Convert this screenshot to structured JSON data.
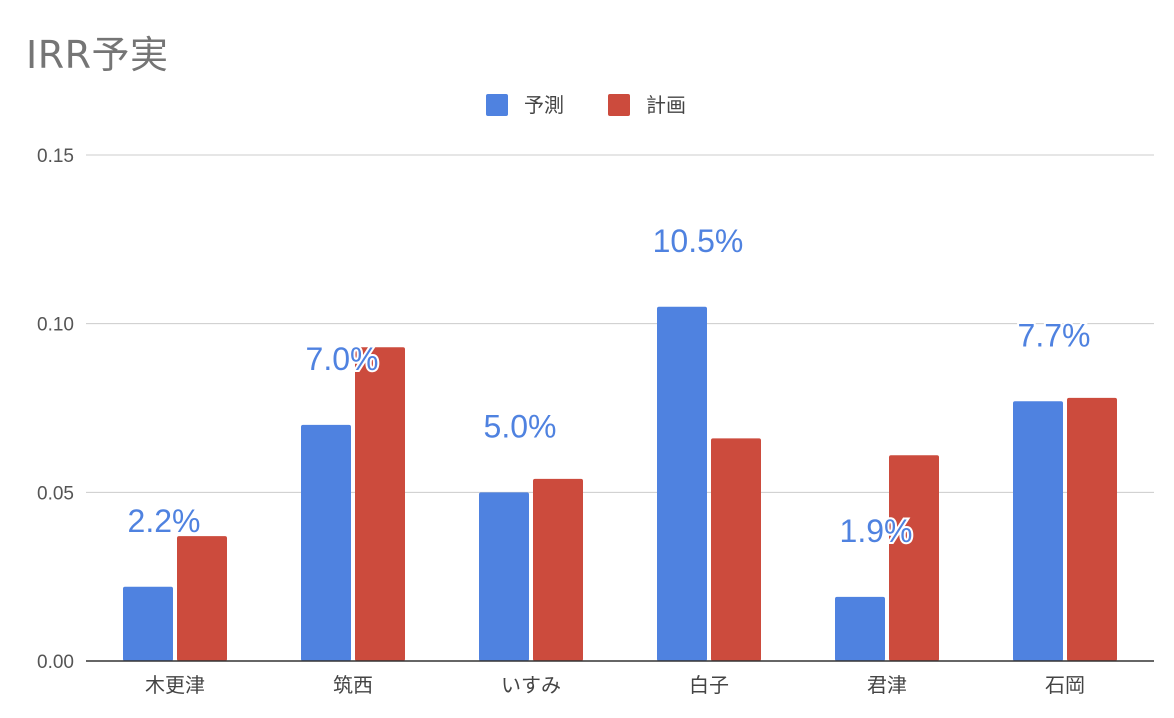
{
  "chart_data": {
    "type": "bar",
    "title": "IRR予実",
    "xlabel": "",
    "ylabel": "",
    "ylim": [
      0,
      0.15
    ],
    "yticks": [
      "0.00",
      "0.05",
      "0.10",
      "0.15"
    ],
    "ytick_values": [
      0,
      0.05,
      0.1,
      0.15
    ],
    "categories": [
      "木更津",
      "筑西",
      "いすみ",
      "白子",
      "君津",
      "石岡"
    ],
    "series": [
      {
        "name": "予測",
        "color": "#4f82e0",
        "values": [
          0.022,
          0.07,
          0.05,
          0.105,
          0.019,
          0.077
        ],
        "data_labels": [
          "2.2%",
          "7.0%",
          "5.0%",
          "10.5%",
          "1.9%",
          "7.7%"
        ]
      },
      {
        "name": "計画",
        "color": "#cc4b3d",
        "values": [
          0.037,
          0.093,
          0.054,
          0.066,
          0.061,
          0.078
        ]
      }
    ],
    "grid": true,
    "legend_position": "top-center"
  }
}
